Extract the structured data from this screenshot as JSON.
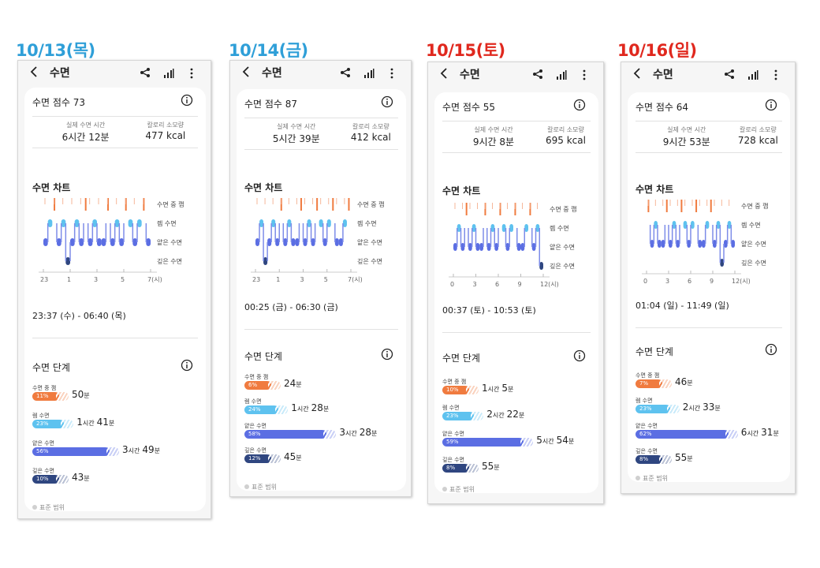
{
  "header": {
    "title": "수면",
    "back_icon": "back-arrow-icon",
    "share_icon": "share-icon",
    "chart_icon": "bar-chart-icon",
    "more_icon": "more-vertical-icon"
  },
  "labels": {
    "actual_sleep": "실제 수면 시간",
    "calories": "칼로리 소모량",
    "sleep_chart": "수면 차트",
    "sleep_stages": "수면 단계",
    "awake": "수면 중 깸",
    "rem": "렘 수면",
    "light": "얕은 수면",
    "deep": "깊은 수면",
    "standard_range": "표준 범위"
  },
  "colors": {
    "awake": "#f07b3f",
    "rem": "#5ec2ef",
    "light": "#5b6ee3",
    "deep": "#2f4680",
    "blue_day": "#2f9fd8",
    "red_day": "#e0281e"
  },
  "days": [
    {
      "date_label": "10/13(목)",
      "date_color": "blue",
      "score": "수면 점수 73",
      "sleep_time": "6시간 12분",
      "calories": "477 kcal",
      "time_range": "23:37 (수) - 06:40 (목)",
      "x_ticks": [
        "23",
        "1",
        "3",
        "5",
        "7(시)"
      ],
      "stages": [
        {
          "key": "awake",
          "percent": 11,
          "percent_label": "11%",
          "big1": "50",
          "unit1": "분",
          "big2": "",
          "unit2": ""
        },
        {
          "key": "rem",
          "percent": 23,
          "percent_label": "23%",
          "big1": "1",
          "unit1": "시간",
          "big2": "41",
          "unit2": "분"
        },
        {
          "key": "light",
          "percent": 56,
          "percent_label": "56%",
          "big1": "3",
          "unit1": "시간",
          "big2": "49",
          "unit2": "분"
        },
        {
          "key": "deep",
          "percent": 10,
          "percent_label": "10%",
          "big1": "43",
          "unit1": "분",
          "big2": "",
          "unit2": ""
        }
      ]
    },
    {
      "date_label": "10/14(금)",
      "date_color": "blue",
      "score": "수면 점수 87",
      "sleep_time": "5시간 39분",
      "calories": "412 kcal",
      "time_range": "00:25 (금) - 06:30 (금)",
      "x_ticks": [
        "23",
        "1",
        "3",
        "5",
        "7(시)"
      ],
      "stages": [
        {
          "key": "awake",
          "percent": 6,
          "percent_label": "6%",
          "big1": "24",
          "unit1": "분",
          "big2": "",
          "unit2": ""
        },
        {
          "key": "rem",
          "percent": 24,
          "percent_label": "24%",
          "big1": "1",
          "unit1": "시간",
          "big2": "28",
          "unit2": "분"
        },
        {
          "key": "light",
          "percent": 58,
          "percent_label": "58%",
          "big1": "3",
          "unit1": "시간",
          "big2": "28",
          "unit2": "분"
        },
        {
          "key": "deep",
          "percent": 12,
          "percent_label": "12%",
          "big1": "45",
          "unit1": "분",
          "big2": "",
          "unit2": ""
        }
      ]
    },
    {
      "date_label": "10/15(토)",
      "date_color": "red",
      "score": "수면 점수 55",
      "sleep_time": "9시간 8분",
      "calories": "695 kcal",
      "time_range": "00:37 (토) - 10:53 (토)",
      "x_ticks": [
        "0",
        "3",
        "6",
        "9",
        "12(시)"
      ],
      "stages": [
        {
          "key": "awake",
          "percent": 10,
          "percent_label": "10%",
          "big1": "1",
          "unit1": "시간",
          "big2": "5",
          "unit2": "분"
        },
        {
          "key": "rem",
          "percent": 23,
          "percent_label": "23%",
          "big1": "2",
          "unit1": "시간",
          "big2": "22",
          "unit2": "분"
        },
        {
          "key": "light",
          "percent": 59,
          "percent_label": "59%",
          "big1": "5",
          "unit1": "시간",
          "big2": "54",
          "unit2": "분"
        },
        {
          "key": "deep",
          "percent": 8,
          "percent_label": "8%",
          "big1": "55",
          "unit1": "분",
          "big2": "",
          "unit2": ""
        }
      ]
    },
    {
      "date_label": "10/16(일)",
      "date_color": "red",
      "score": "수면 점수 64",
      "sleep_time": "9시간 53분",
      "calories": "728 kcal",
      "time_range": "01:04 (일) - 11:49 (일)",
      "x_ticks": [
        "0",
        "3",
        "6",
        "9",
        "12(시)"
      ],
      "stages": [
        {
          "key": "awake",
          "percent": 7,
          "percent_label": "7%",
          "big1": "46",
          "unit1": "분",
          "big2": "",
          "unit2": ""
        },
        {
          "key": "rem",
          "percent": 23,
          "percent_label": "23%",
          "big1": "2",
          "unit1": "시간",
          "big2": "33",
          "unit2": "분"
        },
        {
          "key": "light",
          "percent": 62,
          "percent_label": "62%",
          "big1": "6",
          "unit1": "시간",
          "big2": "31",
          "unit2": "분"
        },
        {
          "key": "deep",
          "percent": 8,
          "percent_label": "8%",
          "big1": "55",
          "unit1": "분",
          "big2": "",
          "unit2": ""
        }
      ]
    }
  ]
}
